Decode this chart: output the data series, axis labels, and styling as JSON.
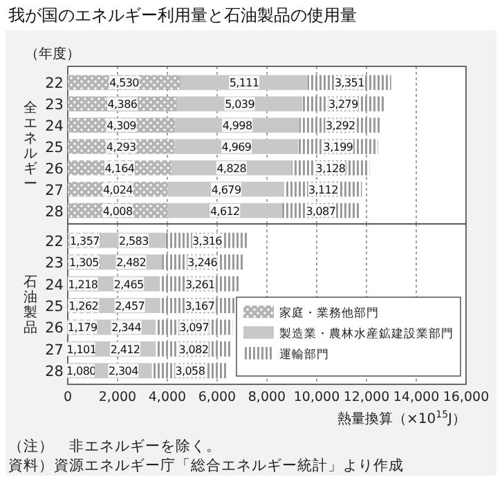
{
  "chart_data": [
    {
      "type": "bar",
      "orientation": "horizontal",
      "stacked": true,
      "title": "我が国のエネルギー利用量と石油製品の使用量",
      "ylabel": "全エネルギー",
      "annotations": [
        "（年度）"
      ],
      "categories": [
        "22",
        "23",
        "24",
        "25",
        "26",
        "27",
        "28"
      ],
      "series": [
        {
          "color": "#b4b4b4",
          "values": [
            4530,
            4386,
            4309,
            4293,
            4164,
            4024,
            4008
          ],
          "value_labels": [
            "4,530",
            "4,386",
            "4,309",
            "4,293",
            "4,164",
            "4,024",
            "4,008"
          ]
        },
        {
          "color": "#c8c8c8",
          "values": [
            5111,
            5039,
            4998,
            4969,
            4828,
            4679,
            4612
          ],
          "value_labels": [
            "5,111",
            "5,039",
            "4,998",
            "4,969",
            "4,828",
            "4,679",
            "4,612"
          ]
        },
        {
          "color": "#9a9a9a",
          "values": [
            3351,
            3279,
            3292,
            3199,
            3128,
            3112,
            3087
          ],
          "value_labels": [
            "3,351",
            "3,279",
            "3,292",
            "3,199",
            "3,128",
            "3,112",
            "3,087"
          ]
        }
      ],
      "xlim": [
        0,
        16000
      ],
      "xticks": [
        0,
        2000,
        4000,
        6000,
        8000,
        10000,
        12000,
        14000,
        16000
      ],
      "tick_labels": "y",
      "grid": "x",
      "legend": false
    },
    {
      "type": "bar",
      "orientation": "horizontal",
      "stacked": true,
      "ylabel": "石油製品",
      "xlabel": "熱量換算（×10$^{15}$J）",
      "annotations": [
        "（注）　非エネルギーを除く。",
        "資料）資源エネルギー庁「総合エネルギー統計」より作成"
      ],
      "categories": [
        "22",
        "23",
        "24",
        "25",
        "26",
        "27",
        "28"
      ],
      "series": [
        {
          "name": "家庭・業務他部門",
          "color": "#b4b4b4",
          "values": [
            1357,
            1305,
            1218,
            1262,
            1179,
            1101,
            1080
          ],
          "value_labels": [
            "1,357",
            "1,305",
            "1,218",
            "1,262",
            "1,179",
            "1,101",
            "1,080"
          ]
        },
        {
          "name": "製造業・農林水産鉱建設業部門",
          "color": "#c8c8c8",
          "values": [
            2583,
            2482,
            2465,
            2457,
            2344,
            2412,
            2304
          ],
          "value_labels": [
            "2,583",
            "2,482",
            "2,465",
            "2,457",
            "2,344",
            "2,412",
            "2,304"
          ]
        },
        {
          "name": "運輸部門",
          "color": "#9a9a9a",
          "values": [
            3316,
            3246,
            3261,
            3167,
            3097,
            3082,
            3058
          ],
          "value_labels": [
            "3,316",
            "3,246",
            "3,261",
            "3,167",
            "3,097",
            "3,082",
            "3,058"
          ]
        }
      ],
      "xlim": [
        0,
        16000
      ],
      "xticks": [
        {
          "value": 0,
          "label": "0"
        },
        {
          "value": 2000,
          "label": "2,000"
        },
        {
          "value": 4000,
          "label": "4,000"
        },
        {
          "value": 6000,
          "label": "6,000"
        },
        {
          "value": 8000,
          "label": "8,000"
        },
        {
          "value": 10000,
          "label": "10,000"
        },
        {
          "value": 12000,
          "label": "12,000"
        },
        {
          "value": 14000,
          "label": "14,000"
        },
        {
          "value": 16000,
          "label": "16,000"
        }
      ],
      "grid": "x",
      "legend": "bottom right"
    }
  ]
}
